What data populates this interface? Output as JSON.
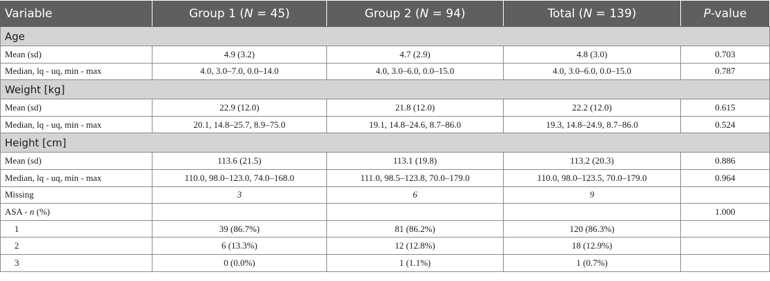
{
  "header": {
    "variable": "Variable",
    "group1_label": "Group 1 (",
    "group1_n": "N",
    "group1_val": " = 45)",
    "group2_label": "Group 2 (",
    "group2_n": "N",
    "group2_val": " = 94)",
    "total_label": "Total (",
    "total_n": "N",
    "total_val": " = 139)",
    "p_italic": "P",
    "p_rest": "-value"
  },
  "age": {
    "title": "Age",
    "rows": [
      {
        "label": "Mean (sd)",
        "g1": "4.9 (3.2)",
        "g2": "4.7 (2.9)",
        "total": "4.8 (3.0)",
        "p": "0.703"
      },
      {
        "label": "Median, lq - uq, min - max",
        "g1": "4.0, 3.0–7.0, 0.0–14.0",
        "g2": "4.0, 3.0–6.0, 0.0–15.0",
        "total": "4.0, 3.0–6.0, 0.0–15.0",
        "p": "0.787"
      }
    ]
  },
  "weight": {
    "title": "Weight [kg]",
    "rows": [
      {
        "label": "Mean (sd)",
        "g1": "22.9 (12.0)",
        "g2": "21.8 (12.0)",
        "total": "22.2 (12.0)",
        "p": "0.615"
      },
      {
        "label": "Median, lq - uq, min - max",
        "g1": "20.1, 14.8–25.7, 8.9–75.0",
        "g2": "19.1, 14.8–24.6, 8.7–86.0",
        "total": "19.3, 14.8–24.9, 8.7–86.0",
        "p": "0.524"
      }
    ]
  },
  "height": {
    "title": "Height [cm]",
    "rows": [
      {
        "label": "Mean (sd)",
        "g1": "113.6 (21.5)",
        "g2": "113.1 (19.8)",
        "total": "113.2 (20.3)",
        "p": "0.886"
      },
      {
        "label": "Median, lq - uq, min - max",
        "g1": "110.0, 98.0–123.0, 74.0–168.0",
        "g2": "111.0, 98.5–123.8, 70.0–179.0",
        "total": "110.0, 98.0–123.5, 70.0–179.0",
        "p": "0.964"
      },
      {
        "label": "Missing",
        "g1": "3",
        "g2": "6",
        "total": "9",
        "p": ""
      }
    ]
  },
  "asa": {
    "label_prefix": "ASA - ",
    "label_n": "n",
    "label_suffix": " (%)",
    "p": "1.000",
    "rows": [
      {
        "label": "1",
        "g1": "39 (86.7%)",
        "g2": "81 (86.2%)",
        "total": "120 (86.3%)",
        "p": ""
      },
      {
        "label": "2",
        "g1": "6 (13.3%)",
        "g2": "12 (12.8%)",
        "total": "18 (12.9%)",
        "p": ""
      },
      {
        "label": "3",
        "g1": "0 (0.0%)",
        "g2": "1 (1.1%)",
        "total": "1 (0.7%)",
        "p": ""
      }
    ]
  }
}
